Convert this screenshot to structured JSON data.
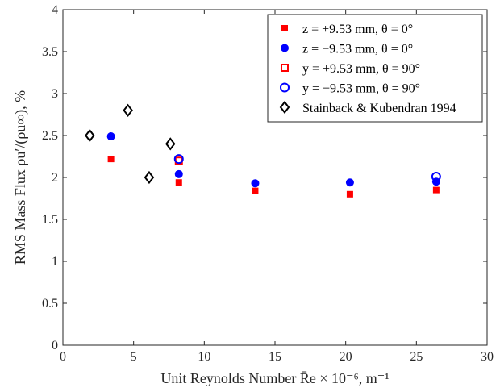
{
  "chart_data": {
    "type": "scatter",
    "xlabel": "Unit Reynolds Number R̄e × 10⁻⁶, m⁻¹",
    "ylabel": "RMS Mass Flux ρu′/(ρu∞), %",
    "xlim": [
      0,
      30
    ],
    "ylim": [
      0,
      4
    ],
    "xticks": [
      "0",
      "5",
      "10",
      "15",
      "20",
      "25",
      "30"
    ],
    "yticks": [
      "0",
      "0.5",
      "1",
      "1.5",
      "2",
      "2.5",
      "3",
      "3.5",
      "4"
    ],
    "grid": false,
    "legend_position": "top-right",
    "series": [
      {
        "name": "z = +9.53 mm, θ = 0°",
        "marker": "filled-square",
        "color": "#ff0000",
        "points": [
          [
            3.4,
            2.22
          ],
          [
            8.2,
            1.94
          ],
          [
            13.6,
            1.84
          ],
          [
            20.3,
            1.8
          ],
          [
            26.4,
            1.85
          ]
        ]
      },
      {
        "name": "z = −9.53 mm, θ = 0°",
        "marker": "filled-circle",
        "color": "#0000ff",
        "points": [
          [
            3.4,
            2.49
          ],
          [
            8.2,
            2.04
          ],
          [
            13.6,
            1.93
          ],
          [
            20.3,
            1.94
          ],
          [
            26.4,
            1.95
          ]
        ]
      },
      {
        "name": "y = +9.53 mm, θ = 90°",
        "marker": "open-square",
        "color": "#ff0000",
        "points": [
          [
            8.2,
            2.2
          ]
        ]
      },
      {
        "name": "y = −9.53 mm, θ = 90°",
        "marker": "open-circle",
        "color": "#0000ff",
        "points": [
          [
            8.2,
            2.22
          ],
          [
            26.4,
            2.01
          ]
        ]
      },
      {
        "name": "Stainback & Kubendran 1994",
        "marker": "open-diamond",
        "color": "#000000",
        "points": [
          [
            1.9,
            2.5
          ],
          [
            4.6,
            2.8
          ],
          [
            6.1,
            2.0
          ],
          [
            7.6,
            2.4
          ]
        ]
      }
    ]
  }
}
